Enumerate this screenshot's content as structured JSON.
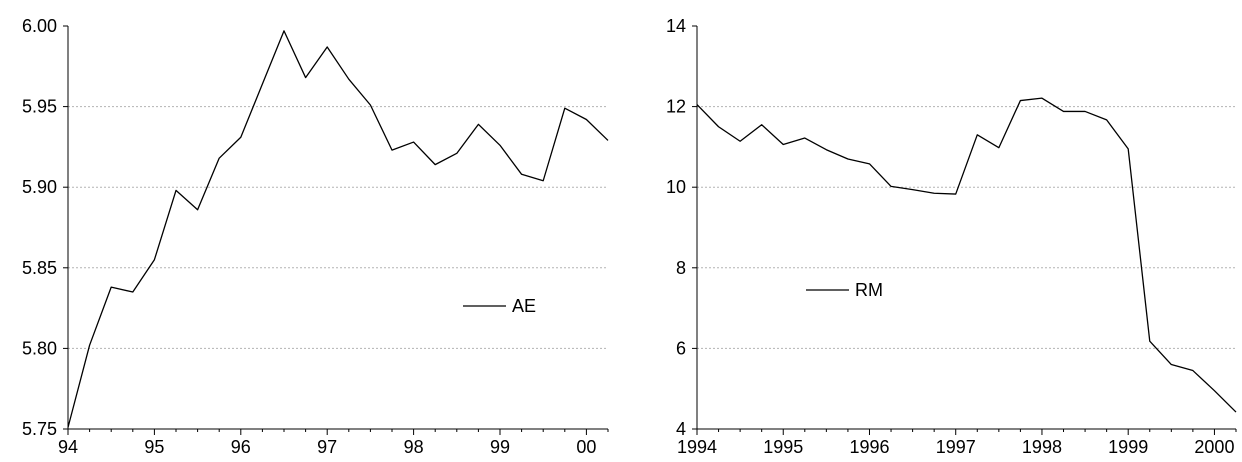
{
  "chart_data": [
    {
      "type": "line",
      "title": "",
      "xlabel": "",
      "ylabel": "",
      "x_ticks": [
        {
          "x": 1994.0,
          "label": "94"
        },
        {
          "x": 1995.0,
          "label": "95"
        },
        {
          "x": 1996.0,
          "label": "96"
        },
        {
          "x": 1997.0,
          "label": "97"
        },
        {
          "x": 1998.0,
          "label": "98"
        },
        {
          "x": 1999.0,
          "label": "99"
        },
        {
          "x": 2000.0,
          "label": "00"
        }
      ],
      "y_ticks": [
        {
          "y": 5.75,
          "label": "5.75"
        },
        {
          "y": 5.8,
          "label": "5.80"
        },
        {
          "y": 5.85,
          "label": "5.85"
        },
        {
          "y": 5.9,
          "label": "5.90"
        },
        {
          "y": 5.95,
          "label": "5.95"
        },
        {
          "y": 6.0,
          "label": "6.00"
        }
      ],
      "xlim": [
        1994.0,
        2000.25
      ],
      "ylim": [
        5.75,
        6.0
      ],
      "grid": "horizontal dotted",
      "legend_position": "center-right",
      "series": [
        {
          "name": "AE",
          "color": "#000000",
          "x": [
            1994.0,
            1994.25,
            1994.5,
            1994.75,
            1995.0,
            1995.25,
            1995.5,
            1995.75,
            1996.0,
            1996.25,
            1996.5,
            1996.75,
            1997.0,
            1997.25,
            1997.5,
            1997.75,
            1998.0,
            1998.25,
            1998.5,
            1998.75,
            1999.0,
            1999.25,
            1999.5,
            1999.75,
            2000.0,
            2000.25
          ],
          "values": [
            5.751,
            5.802,
            5.838,
            5.835,
            5.855,
            5.898,
            5.886,
            5.918,
            5.931,
            5.964,
            5.997,
            5.968,
            5.987,
            5.967,
            5.951,
            5.923,
            5.928,
            5.914,
            5.921,
            5.939,
            5.926,
            5.908,
            5.904,
            5.949,
            5.942,
            5.929
          ]
        }
      ]
    },
    {
      "type": "line",
      "title": "",
      "xlabel": "",
      "ylabel": "",
      "x_ticks": [
        {
          "x": 1994.0,
          "label": "1994"
        },
        {
          "x": 1995.0,
          "label": "1995"
        },
        {
          "x": 1996.0,
          "label": "1996"
        },
        {
          "x": 1997.0,
          "label": "1997"
        },
        {
          "x": 1998.0,
          "label": "1998"
        },
        {
          "x": 1999.0,
          "label": "1999"
        },
        {
          "x": 2000.0,
          "label": "2000"
        }
      ],
      "y_ticks": [
        {
          "y": 4,
          "label": "4"
        },
        {
          "y": 6,
          "label": "6"
        },
        {
          "y": 8,
          "label": "8"
        },
        {
          "y": 10,
          "label": "10"
        },
        {
          "y": 12,
          "label": "12"
        },
        {
          "y": 14,
          "label": "14"
        }
      ],
      "xlim": [
        1994.0,
        2000.25
      ],
      "ylim": [
        4,
        14
      ],
      "grid": "horizontal dotted",
      "legend_position": "center-left",
      "series": [
        {
          "name": "RM",
          "color": "#000000",
          "x": [
            1994.0,
            1994.25,
            1994.5,
            1994.75,
            1995.0,
            1995.25,
            1995.5,
            1995.75,
            1996.0,
            1996.25,
            1996.5,
            1996.75,
            1997.0,
            1997.25,
            1997.5,
            1997.75,
            1998.0,
            1998.25,
            1998.5,
            1998.75,
            1999.0,
            1999.25,
            1999.5,
            1999.75,
            2000.0,
            2000.25
          ],
          "values": [
            12.05,
            11.5,
            11.14,
            11.55,
            11.06,
            11.22,
            10.93,
            10.7,
            10.58,
            10.02,
            9.94,
            9.85,
            9.83,
            11.3,
            10.98,
            12.15,
            12.21,
            11.88,
            11.88,
            11.67,
            10.95,
            6.18,
            5.6,
            5.45,
            4.95,
            4.42
          ]
        }
      ]
    }
  ]
}
